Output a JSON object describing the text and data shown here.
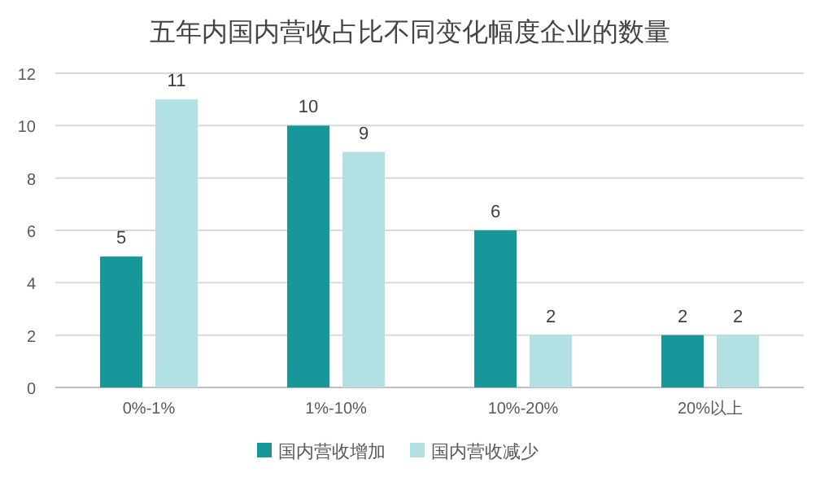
{
  "chart_data": {
    "type": "bar",
    "title": "五年内国内营收占比不同变化幅度企业的数量",
    "categories": [
      "0%-1%",
      "1%-10%",
      "10%-20%",
      "20%以上"
    ],
    "series": [
      {
        "name": "国内营收增加",
        "color": "#17979a",
        "values": [
          5,
          10,
          6,
          2
        ]
      },
      {
        "name": "国内营收减少",
        "color": "#b2e0e3",
        "values": [
          11,
          9,
          2,
          2
        ]
      }
    ],
    "ylim": [
      0,
      12
    ],
    "yticks": [
      0,
      2,
      4,
      6,
      8,
      10,
      12
    ],
    "grid": "y",
    "legend": "bottom",
    "data_labels": true
  }
}
